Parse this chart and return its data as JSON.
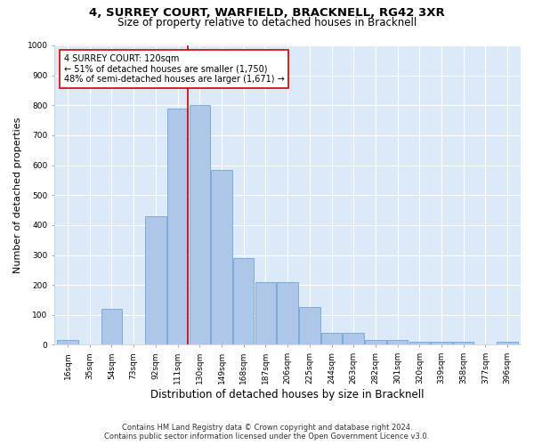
{
  "title": "4, SURREY COURT, WARFIELD, BRACKNELL, RG42 3XR",
  "subtitle": "Size of property relative to detached houses in Bracknell",
  "xlabel": "Distribution of detached houses by size in Bracknell",
  "ylabel": "Number of detached properties",
  "bin_labels": [
    "16sqm",
    "35sqm",
    "54sqm",
    "73sqm",
    "92sqm",
    "111sqm",
    "130sqm",
    "149sqm",
    "168sqm",
    "187sqm",
    "206sqm",
    "225sqm",
    "244sqm",
    "263sqm",
    "282sqm",
    "301sqm",
    "320sqm",
    "339sqm",
    "358sqm",
    "377sqm",
    "396sqm"
  ],
  "bin_values": [
    15,
    0,
    120,
    0,
    430,
    790,
    800,
    585,
    290,
    210,
    210,
    125,
    40,
    40,
    15,
    15,
    10,
    10,
    10,
    0,
    10
  ],
  "bar_color": "#aec6e8",
  "bar_edge_color": "#5b9bd5",
  "red_line_color": "#cc0000",
  "annotation_line1": "4 SURREY COURT: 120sqm",
  "annotation_line2": "← 51% of detached houses are smaller (1,750)",
  "annotation_line3": "48% of semi-detached houses are larger (1,671) →",
  "annotation_box_color": "#ffffff",
  "annotation_box_edge_color": "#cc0000",
  "ylim": [
    0,
    1000
  ],
  "yticks": [
    0,
    100,
    200,
    300,
    400,
    500,
    600,
    700,
    800,
    900,
    1000
  ],
  "footer_line1": "Contains HM Land Registry data © Crown copyright and database right 2024.",
  "footer_line2": "Contains public sector information licensed under the Open Government Licence v3.0.",
  "bg_color": "#dce9f7",
  "fig_bg_color": "#ffffff",
  "grid_color": "#ffffff",
  "title_fontsize": 9.5,
  "subtitle_fontsize": 8.5,
  "axis_label_fontsize": 8,
  "tick_fontsize": 6.5,
  "annotation_fontsize": 7,
  "footer_fontsize": 6
}
